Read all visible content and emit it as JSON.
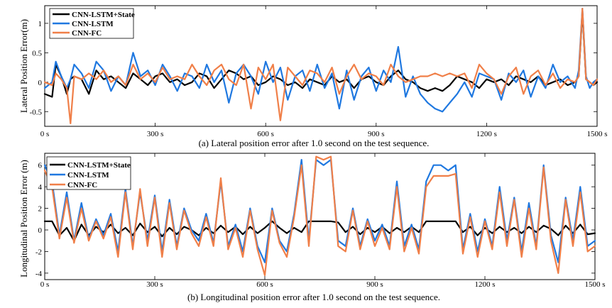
{
  "chart_data": [
    {
      "type": "line",
      "caption": "(a) Lateral position  error after 1.0 second on the test sequence.",
      "ylabel": "Lateral Position Error(m)",
      "xlim": [
        0,
        1500
      ],
      "ylim": [
        -0.75,
        1.3
      ],
      "xticks": [
        0,
        300,
        600,
        900,
        1200,
        1500
      ],
      "xtick_labels": [
        "0 s",
        "300 s",
        "600 s",
        "900 s",
        "1200 s",
        "1500 s"
      ],
      "yticks": [
        -0.5,
        0,
        0.5,
        1
      ],
      "ytick_labels": [
        "-0.5",
        "0",
        "0.5",
        "1"
      ],
      "legend": {
        "position": "top-left"
      },
      "series": [
        {
          "name": "CNN-LSTM+State",
          "color": "#000000",
          "x": [
            0,
            20,
            30,
            45,
            60,
            70,
            80,
            100,
            120,
            140,
            160,
            180,
            200,
            220,
            240,
            260,
            280,
            300,
            320,
            340,
            360,
            380,
            400,
            420,
            440,
            460,
            480,
            500,
            520,
            540,
            560,
            580,
            600,
            620,
            640,
            660,
            680,
            700,
            720,
            740,
            760,
            780,
            800,
            820,
            840,
            860,
            880,
            900,
            920,
            940,
            960,
            980,
            1000,
            1020,
            1040,
            1060,
            1080,
            1100,
            1120,
            1140,
            1160,
            1180,
            1200,
            1220,
            1240,
            1260,
            1280,
            1300,
            1320,
            1340,
            1360,
            1380,
            1400,
            1420,
            1440,
            1450,
            1460,
            1470,
            1480,
            1490,
            1500
          ],
          "y": [
            -0.2,
            -0.25,
            0.3,
            0.1,
            -0.2,
            0.05,
            0.1,
            0.05,
            -0.2,
            0.2,
            0.05,
            0.1,
            0.0,
            -0.1,
            0.15,
            0.05,
            -0.05,
            0.1,
            0.15,
            0.0,
            0.05,
            -0.05,
            0.0,
            0.15,
            0.1,
            -0.1,
            0.05,
            0.2,
            0.15,
            0.05,
            0.1,
            -0.05,
            0.0,
            0.1,
            0.05,
            -0.05,
            0.0,
            -0.1,
            0.05,
            0.0,
            -0.05,
            0.1,
            0.0,
            0.05,
            -0.1,
            0.05,
            0.1,
            0.0,
            -0.05,
            0.1,
            0.2,
            0.05,
            0.0,
            -0.1,
            -0.15,
            -0.1,
            -0.15,
            -0.05,
            0.1,
            0.05,
            0.0,
            -0.1,
            0.05,
            0.0,
            0.05,
            -0.05,
            0.1,
            0.05,
            0.0,
            0.1,
            -0.05,
            0.0,
            0.05,
            -0.05,
            0.0,
            0.1,
            1.2,
            0.05,
            0.0,
            -0.05,
            0.0
          ]
        },
        {
          "name": "CNN-LSTM",
          "color": "#1f78e0",
          "x": [
            0,
            20,
            30,
            45,
            60,
            70,
            80,
            100,
            120,
            140,
            160,
            180,
            200,
            220,
            240,
            260,
            280,
            300,
            320,
            340,
            360,
            380,
            400,
            420,
            440,
            460,
            480,
            500,
            520,
            540,
            560,
            580,
            600,
            620,
            640,
            660,
            680,
            700,
            720,
            740,
            760,
            780,
            800,
            820,
            840,
            860,
            880,
            900,
            920,
            940,
            960,
            980,
            1000,
            1020,
            1040,
            1060,
            1080,
            1100,
            1120,
            1140,
            1160,
            1180,
            1200,
            1220,
            1240,
            1260,
            1280,
            1300,
            1320,
            1340,
            1360,
            1380,
            1400,
            1420,
            1440,
            1450,
            1460,
            1470,
            1480,
            1490,
            1500
          ],
          "y": [
            -0.1,
            0.0,
            0.35,
            0.1,
            -0.1,
            0.05,
            0.3,
            0.15,
            -0.1,
            0.35,
            0.2,
            -0.15,
            0.1,
            -0.05,
            0.5,
            0.1,
            0.2,
            -0.05,
            0.3,
            0.1,
            -0.15,
            0.15,
            0.1,
            -0.1,
            0.3,
            0.0,
            0.2,
            -0.35,
            0.15,
            0.3,
            0.1,
            -0.2,
            0.35,
            0.0,
            0.25,
            -0.3,
            0.1,
            0.2,
            -0.15,
            0.3,
            -0.1,
            0.15,
            -0.45,
            0.2,
            -0.3,
            0.1,
            0.25,
            -0.15,
            0.2,
            0.0,
            0.6,
            -0.25,
            0.1,
            -0.2,
            -0.35,
            -0.45,
            -0.5,
            -0.35,
            -0.2,
            0.0,
            -0.25,
            0.15,
            0.1,
            0.05,
            -0.3,
            0.15,
            0.0,
            0.2,
            -0.25,
            0.1,
            -0.1,
            0.3,
            0.0,
            0.1,
            -0.1,
            0.2,
            1.25,
            0.1,
            -0.1,
            0.0,
            0.05
          ]
        },
        {
          "name": "CNN-FC",
          "color": "#f07f48",
          "x": [
            0,
            20,
            30,
            45,
            60,
            70,
            80,
            100,
            120,
            140,
            160,
            180,
            200,
            220,
            240,
            260,
            280,
            300,
            320,
            340,
            360,
            380,
            400,
            420,
            440,
            460,
            480,
            500,
            520,
            540,
            560,
            580,
            600,
            620,
            640,
            660,
            680,
            700,
            720,
            740,
            760,
            780,
            800,
            820,
            840,
            860,
            880,
            900,
            920,
            940,
            960,
            980,
            1000,
            1020,
            1040,
            1060,
            1080,
            1100,
            1120,
            1140,
            1160,
            1180,
            1200,
            1220,
            1240,
            1260,
            1280,
            1300,
            1320,
            1340,
            1360,
            1380,
            1400,
            1420,
            1440,
            1450,
            1460,
            1470,
            1480,
            1490,
            1500
          ],
          "y": [
            0.0,
            -0.05,
            0.15,
            0.05,
            -0.1,
            -0.7,
            0.1,
            0.05,
            0.15,
            0.05,
            0.2,
            0.0,
            0.1,
            -0.05,
            0.3,
            0.05,
            0.15,
            0.0,
            0.25,
            0.05,
            0.1,
            0.05,
            0.3,
            0.1,
            -0.05,
            0.2,
            0.3,
            0.05,
            -0.05,
            0.3,
            -0.45,
            0.25,
            0.05,
            0.3,
            -0.65,
            0.25,
            0.1,
            -0.05,
            0.2,
            0.15,
            0.0,
            0.25,
            -0.2,
            0.1,
            0.3,
            0.05,
            0.15,
            0.1,
            -0.05,
            0.3,
            0.1,
            0.0,
            0.05,
            0.1,
            0.1,
            0.15,
            0.1,
            0.15,
            0.1,
            0.15,
            -0.1,
            0.3,
            0.15,
            0.05,
            -0.2,
            0.1,
            0.25,
            -0.2,
            0.1,
            0.2,
            -0.05,
            0.15,
            -0.1,
            0.05,
            0.0,
            0.1,
            1.25,
            0.05,
            0.0,
            -0.05,
            0.05
          ]
        }
      ]
    },
    {
      "type": "line",
      "caption": "(b) Longitudinal  position error after 1.0 second on the test sequence.",
      "ylabel": "Longitudinal Position Error (m)",
      "xlim": [
        0,
        1500
      ],
      "ylim": [
        -4.6,
        7.1
      ],
      "xticks": [
        0,
        300,
        600,
        900,
        1200,
        1500
      ],
      "xtick_labels": [
        "0 s",
        "300 s",
        "600 s",
        "900 s",
        "1200 s",
        "1500 s"
      ],
      "yticks": [
        -4,
        -2,
        0,
        2,
        4,
        6
      ],
      "ytick_labels": [
        "-4",
        "-2",
        "0",
        "2",
        "4",
        "6"
      ],
      "legend": {
        "position": "top-left"
      },
      "series": [
        {
          "name": "CNN-LSTM+State",
          "color": "#000000",
          "x": [
            0,
            20,
            40,
            60,
            80,
            100,
            120,
            140,
            160,
            180,
            200,
            220,
            240,
            260,
            280,
            300,
            320,
            340,
            360,
            380,
            400,
            420,
            440,
            460,
            480,
            500,
            520,
            540,
            560,
            580,
            600,
            620,
            640,
            660,
            680,
            700,
            720,
            740,
            760,
            780,
            800,
            820,
            840,
            860,
            880,
            900,
            920,
            940,
            960,
            980,
            1000,
            1020,
            1040,
            1060,
            1080,
            1100,
            1120,
            1140,
            1160,
            1180,
            1200,
            1220,
            1240,
            1260,
            1280,
            1300,
            1320,
            1340,
            1360,
            1380,
            1400,
            1420,
            1440,
            1460,
            1480,
            1500
          ],
          "y": [
            0.8,
            0.8,
            -0.5,
            0.2,
            -1.0,
            0.5,
            -0.5,
            0.3,
            -0.2,
            0.5,
            -0.3,
            0.2,
            -0.5,
            0.6,
            -0.2,
            0.3,
            -0.6,
            0.2,
            -0.4,
            0.3,
            0.0,
            -0.5,
            0.2,
            -0.3,
            0.4,
            -0.2,
            0.3,
            -0.4,
            0.3,
            -0.3,
            0.2,
            0.8,
            0.2,
            -0.3,
            0.2,
            -0.2,
            0.8,
            0.8,
            0.8,
            0.8,
            0.7,
            -0.2,
            0.3,
            -0.4,
            0.2,
            -0.2,
            0.3,
            -0.3,
            0.2,
            -0.2,
            0.3,
            -0.2,
            0.8,
            0.8,
            0.8,
            0.8,
            0.8,
            -0.2,
            0.3,
            -0.5,
            0.2,
            -0.3,
            0.3,
            -0.2,
            0.2,
            -0.3,
            0.3,
            -0.2,
            0.4,
            0.1,
            -0.5,
            0.4,
            -0.3,
            0.5,
            -0.4,
            -0.3
          ]
        },
        {
          "name": "CNN-LSTM",
          "color": "#1f78e0",
          "x": [
            0,
            20,
            40,
            60,
            80,
            100,
            120,
            140,
            160,
            180,
            200,
            220,
            240,
            260,
            280,
            300,
            320,
            340,
            360,
            380,
            400,
            420,
            440,
            460,
            480,
            500,
            520,
            540,
            560,
            580,
            600,
            620,
            640,
            660,
            680,
            700,
            720,
            740,
            760,
            780,
            800,
            820,
            840,
            860,
            880,
            900,
            920,
            940,
            960,
            980,
            1000,
            1020,
            1040,
            1060,
            1080,
            1100,
            1120,
            1140,
            1160,
            1180,
            1200,
            1220,
            1240,
            1260,
            1280,
            1300,
            1320,
            1340,
            1360,
            1380,
            1400,
            1420,
            1440,
            1460,
            1480,
            1500
          ],
          "y": [
            6.0,
            4.5,
            -0.5,
            3.5,
            -1.0,
            2.5,
            -0.8,
            1.0,
            -0.5,
            1.5,
            -2.0,
            3.8,
            -1.5,
            3.5,
            -1.0,
            3.2,
            -2.0,
            2.8,
            -1.5,
            2.0,
            0.0,
            -1.0,
            1.5,
            -1.2,
            4.5,
            -1.5,
            0.5,
            -2.0,
            2.0,
            -1.5,
            -3.0,
            2.0,
            -1.0,
            -2.0,
            1.5,
            6.5,
            -1.0,
            6.5,
            6.0,
            6.5,
            -1.0,
            -1.5,
            2.0,
            -1.5,
            1.0,
            -1.0,
            0.5,
            -1.5,
            4.5,
            -1.5,
            0.5,
            -1.8,
            4.5,
            6.0,
            6.0,
            5.5,
            6.0,
            -1.8,
            1.5,
            -2.0,
            1.0,
            -1.5,
            4.0,
            -1.0,
            3.0,
            -2.0,
            2.5,
            -1.5,
            6.0,
            -0.5,
            -3.0,
            3.0,
            -1.0,
            4.0,
            -1.5,
            -1.0
          ]
        },
        {
          "name": "CNN-FC",
          "color": "#f07f48",
          "x": [
            0,
            20,
            40,
            60,
            80,
            100,
            120,
            140,
            160,
            180,
            200,
            220,
            240,
            260,
            280,
            300,
            320,
            340,
            360,
            380,
            400,
            420,
            440,
            460,
            480,
            500,
            520,
            540,
            560,
            580,
            600,
            620,
            640,
            660,
            680,
            700,
            720,
            740,
            760,
            780,
            800,
            820,
            840,
            860,
            880,
            900,
            920,
            940,
            960,
            980,
            1000,
            1020,
            1040,
            1060,
            1080,
            1100,
            1120,
            1140,
            1160,
            1180,
            1200,
            1220,
            1240,
            1260,
            1280,
            1300,
            1320,
            1340,
            1360,
            1380,
            1400,
            1420,
            1440,
            1460,
            1480,
            1500
          ],
          "y": [
            5.5,
            4.0,
            -0.8,
            3.0,
            -1.2,
            2.0,
            -1.0,
            0.8,
            -0.8,
            1.2,
            -2.5,
            3.5,
            -1.8,
            3.8,
            -1.5,
            3.0,
            -2.5,
            2.5,
            -1.8,
            1.8,
            -0.3,
            -1.5,
            1.2,
            -1.5,
            4.8,
            -1.8,
            0.2,
            -2.5,
            1.8,
            -1.8,
            -4.2,
            1.8,
            -1.2,
            -2.5,
            1.2,
            6.0,
            -1.5,
            6.8,
            6.5,
            6.8,
            -1.5,
            -2.0,
            1.8,
            -1.8,
            0.8,
            -1.5,
            0.2,
            -1.8,
            4.0,
            -2.0,
            0.2,
            -2.2,
            4.0,
            5.0,
            5.0,
            5.0,
            5.2,
            -2.2,
            1.2,
            -2.5,
            0.8,
            -1.8,
            3.5,
            -1.5,
            2.8,
            -2.5,
            2.0,
            -1.8,
            5.8,
            -1.0,
            -4.0,
            2.8,
            -1.5,
            3.5,
            -2.0,
            -1.5
          ]
        }
      ]
    }
  ]
}
